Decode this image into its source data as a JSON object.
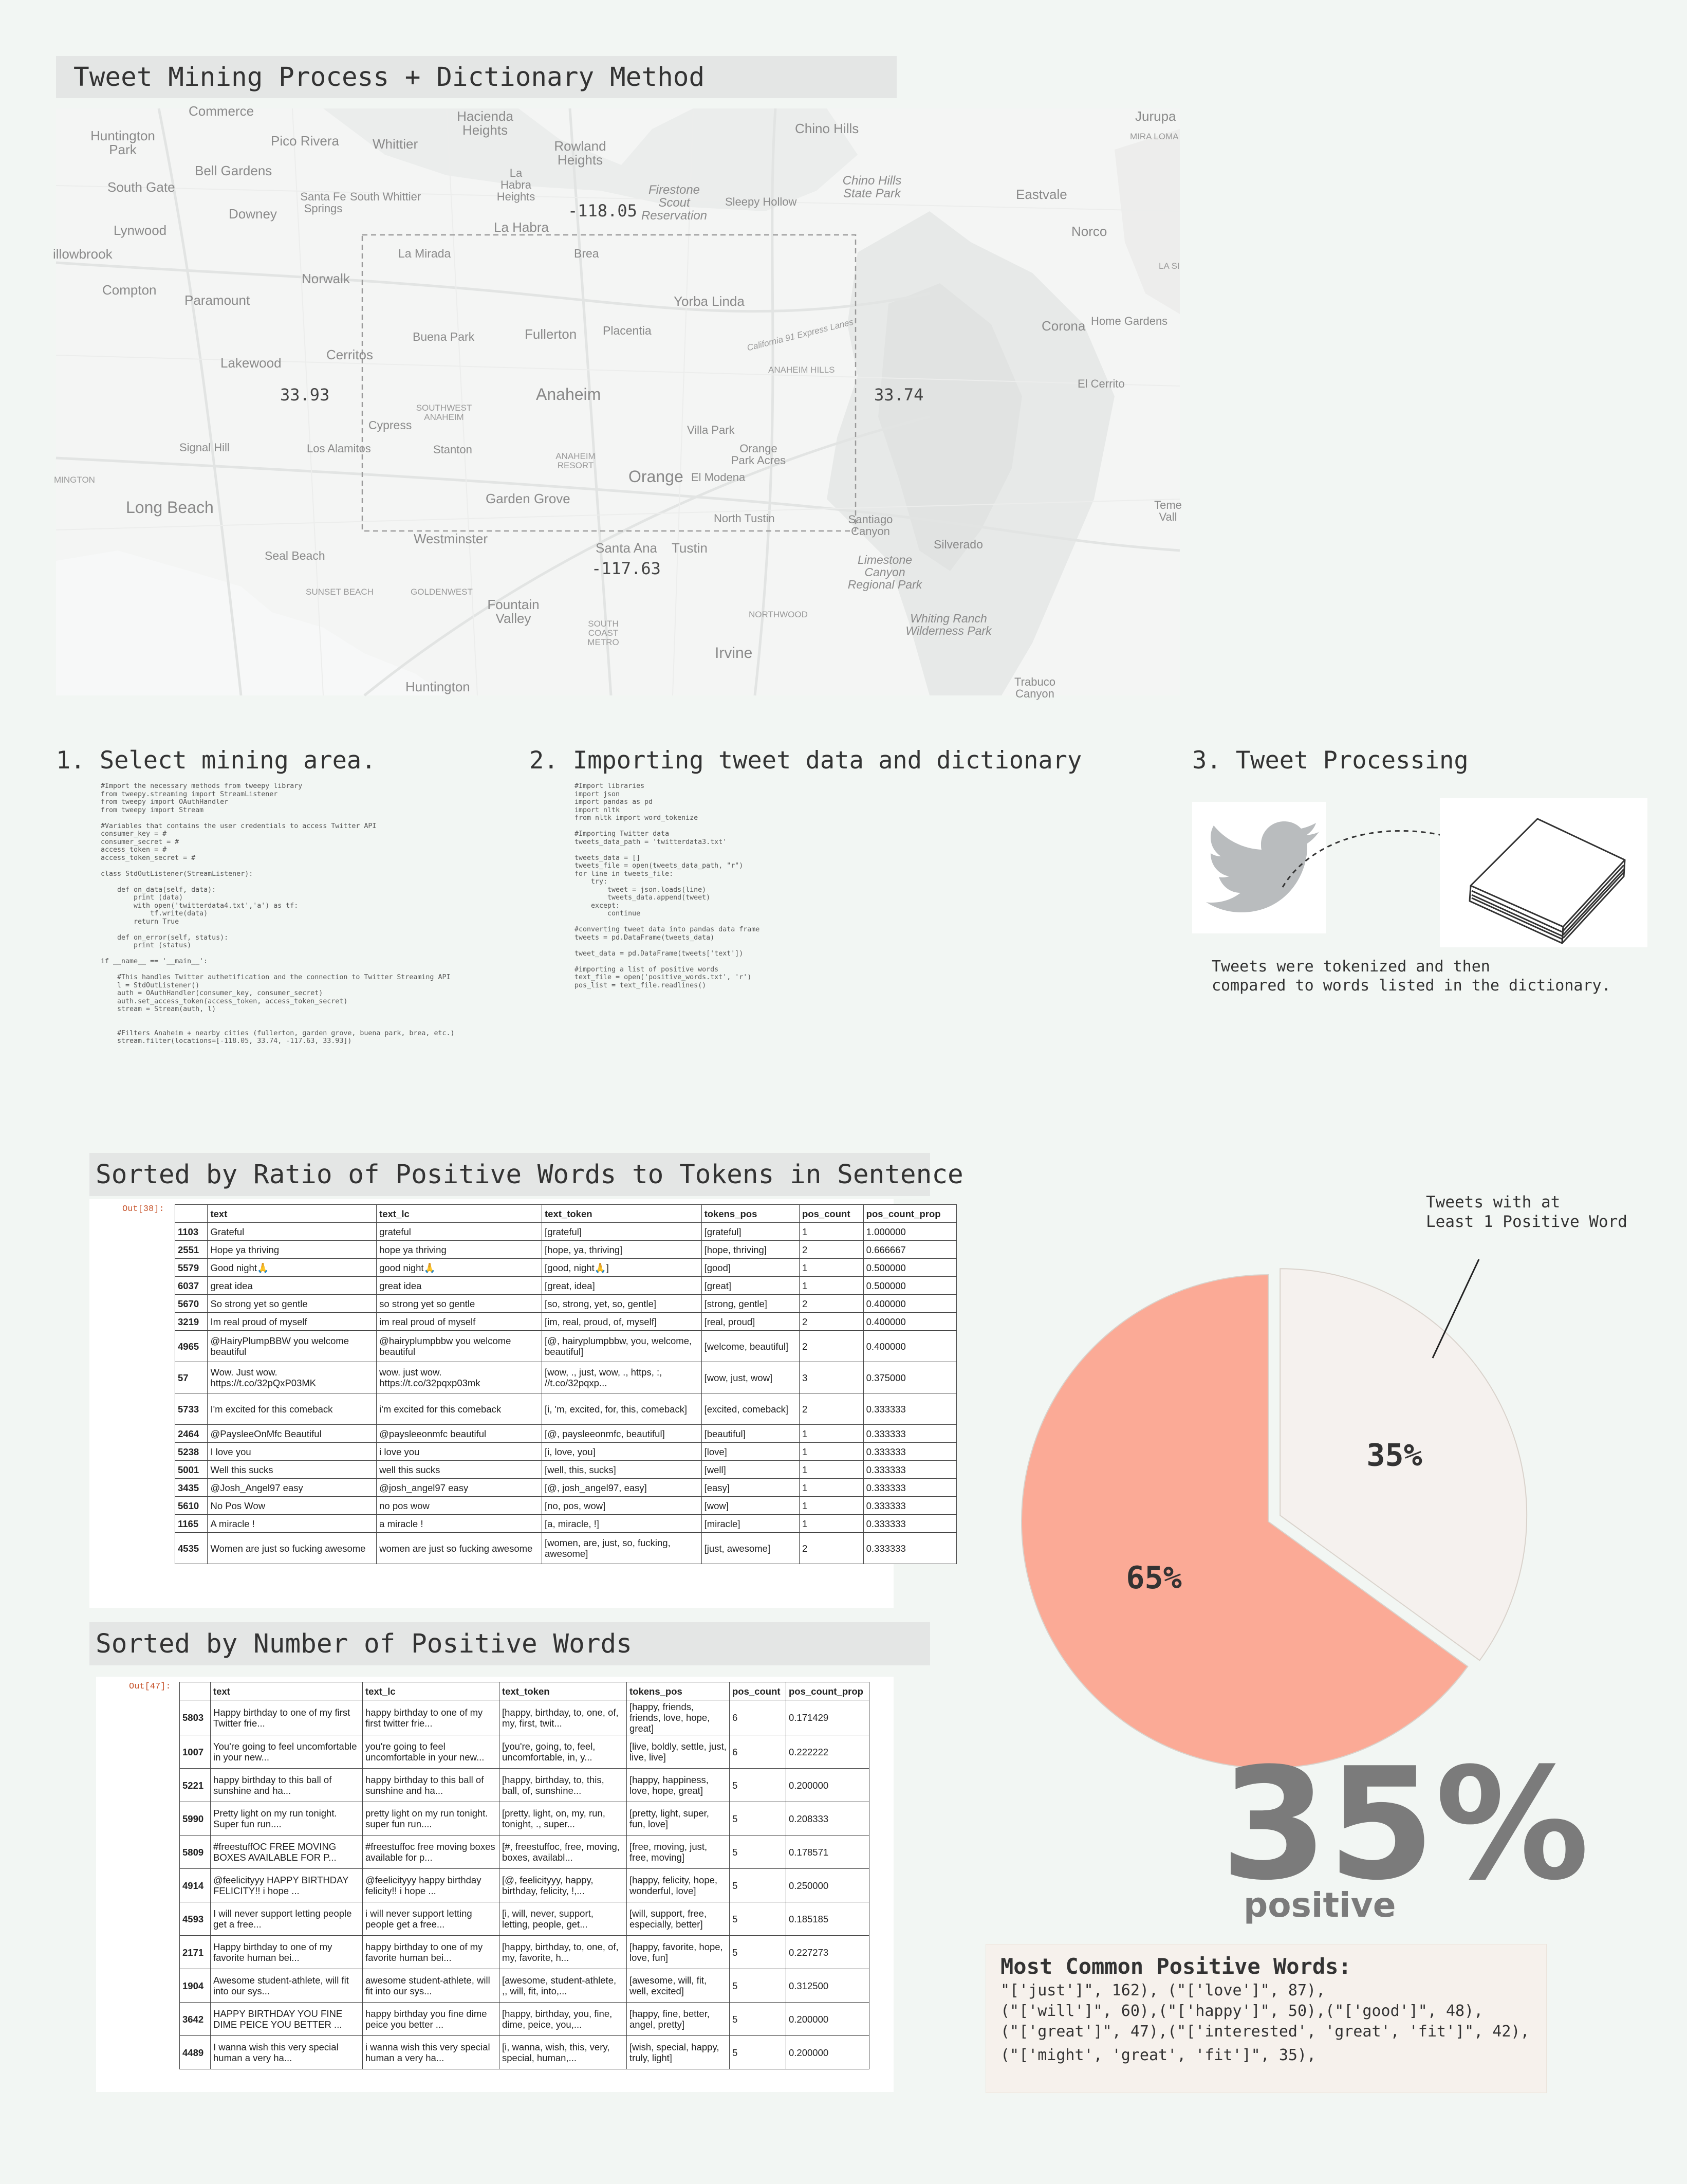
{
  "title": "Tweet Mining Process + Dictionary Method",
  "map": {
    "coords": {
      "top": "-118.05",
      "bottom": "-117.63",
      "left": "33.93",
      "right": "33.74"
    },
    "places": [
      "Commerce",
      "Hacienda Heights",
      "Chino Hills",
      "Jurupa",
      "MIRA LOMA",
      "Huntington Park",
      "Pico Rivera",
      "Whittier",
      "Rowland Heights",
      "Bell Gardens",
      "La Habra Heights",
      "Firestone Scout Reservation",
      "Chino Hills State Park",
      "South Gate",
      "Santa Fe Springs",
      "South Whittier",
      "Sleepy Hollow",
      "Eastvale",
      "Lynwood",
      "Downey",
      "La Habra",
      "Norco",
      "illowbrook",
      "La Mirada",
      "Brea",
      "LA SI",
      "Compton",
      "Norwalk",
      "Paramount",
      "Yorba Linda",
      "Buena Park",
      "Fullerton",
      "Placentia",
      "California 91 Express Lanes",
      "Corona",
      "Home Gardens",
      "ANAHEIM HILLS",
      "Lakewood",
      "Cerritos",
      "El Cerrito",
      "Anaheim",
      "SOUTHWEST ANAHEIM",
      "Cypress",
      "Villa Park",
      "Signal Hill",
      "Los Alamitos",
      "Stanton",
      "ANAHEIM RESORT",
      "Orange Park Acres",
      "MINGTON",
      "Orange",
      "El Modena",
      "Long Beach",
      "Garden Grove",
      "North Tustin",
      "Santiago Canyon",
      "Teme Vall",
      "Westminster",
      "Santa Ana",
      "Tustin",
      "Silverado",
      "Seal Beach",
      "Limestone Canyon Regional Park",
      "SUNSET BEACH",
      "GOLDENWEST",
      "Fountain Valley",
      "NORTHWOOD",
      "Whiting Ranch Wilderness Park",
      "SOUTH COAST METRO",
      "Irvine",
      "Trabuco Canyon",
      "Huntington"
    ]
  },
  "steps": {
    "s1": {
      "heading": "1. Select mining area."
    },
    "s2": {
      "heading": "2. Importing tweet data and dictionary"
    },
    "s3": {
      "heading": "3. Tweet Processing"
    }
  },
  "code1": [
    "#Import the necessary methods from tweepy library",
    "from tweepy.streaming import StreamListener",
    "from tweepy import OAuthHandler",
    "from tweepy import Stream",
    "",
    "#Variables that contains the user credentials to access Twitter API",
    "consumer_key = #",
    "consumer_secret = #",
    "access_token = #",
    "access_token_secret = #",
    "",
    "class StdOutListener(StreamListener):",
    "",
    "    def on_data(self, data):",
    "        print (data)",
    "        with open('twitterdata4.txt','a') as tf:",
    "            tf.write(data)",
    "        return True",
    "",
    "    def on_error(self, status):",
    "        print (status)",
    "",
    "if __name__ == '__main__':",
    "",
    "    #This handles Twitter authetification and the connection to Twitter Streaming API",
    "    l = StdOutListener()",
    "    auth = OAuthHandler(consumer_key, consumer_secret)",
    "    auth.set_access_token(access_token, access_token_secret)",
    "    stream = Stream(auth, l)",
    "",
    "",
    "    #Filters Anaheim + nearby cities (fullerton, garden grove, buena park, brea, etc.)",
    "    stream.filter(locations=[-118.05, 33.74, -117.63, 33.93])"
  ],
  "code2": [
    "#Import libraries",
    "import json",
    "import pandas as pd",
    "import nltk",
    "from nltk import word_tokenize",
    "",
    "#Importing Twitter data",
    "tweets_data_path = 'twitterdata3.txt'",
    "",
    "tweets_data = []",
    "tweets_file = open(tweets_data_path, \"r\")",
    "for line in tweets_file:",
    "    try:",
    "        tweet = json.loads(line)",
    "        tweets_data.append(tweet)",
    "    except:",
    "        continue",
    "",
    "#converting tweet data into pandas data frame",
    "tweets = pd.DataFrame(tweets_data)",
    "",
    "tweet_data = pd.DataFrame(tweets['text'])",
    "",
    "#importing a list of positive words",
    "text_file = open('positive_words.txt', 'r')",
    "pos_list = text_file.readlines()"
  ],
  "processing_caption": "Tweets were tokenized and then\ncompared to words listed in the dictionary.",
  "table1": {
    "banner": "Sorted by Ratio of Positive Words to Tokens in Sentence",
    "out_label": "Out[38]:",
    "columns": [
      "",
      "text",
      "text_lc",
      "text_token",
      "tokens_pos",
      "pos_count",
      "pos_count_prop"
    ],
    "rows": [
      [
        "1103",
        "Grateful",
        "grateful",
        "[grateful]",
        "[grateful]",
        "1",
        "1.000000"
      ],
      [
        "2551",
        "Hope ya thriving",
        "hope ya thriving",
        "[hope, ya, thriving]",
        "[hope, thriving]",
        "2",
        "0.666667"
      ],
      [
        "5579",
        "Good night🙏",
        "good night🙏",
        "[good, night🙏]",
        "[good]",
        "1",
        "0.500000"
      ],
      [
        "6037",
        "great idea",
        "great idea",
        "[great, idea]",
        "[great]",
        "1",
        "0.500000"
      ],
      [
        "5670",
        "So strong yet so gentle",
        "so strong yet so gentle",
        "[so, strong, yet, so, gentle]",
        "[strong, gentle]",
        "2",
        "0.400000"
      ],
      [
        "3219",
        "Im real proud of myself",
        "im real proud of myself",
        "[im, real, proud, of, myself]",
        "[real, proud]",
        "2",
        "0.400000"
      ],
      [
        "4965",
        "@HairyPlumpBBW you welcome beautiful",
        "@hairyplumpbbw you welcome beautiful",
        "[@, hairyplumpbbw, you, welcome, beautiful]",
        "[welcome, beautiful]",
        "2",
        "0.400000"
      ],
      [
        "57",
        "Wow. Just wow. https://t.co/32pQxP03MK",
        "wow. just wow. https://t.co/32pqxp03mk",
        "[wow, ., just, wow, ., https, :, //t.co/32pqxp...",
        "[wow, just, wow]",
        "3",
        "0.375000"
      ],
      [
        "5733",
        "I'm excited for this comeback",
        "i'm excited for this comeback",
        "[i, 'm, excited, for, this, comeback]",
        "[excited, comeback]",
        "2",
        "0.333333"
      ],
      [
        "2464",
        "@PaysleeOnMfc Beautiful",
        "@paysleeonmfc beautiful",
        "[@, paysleeonmfc, beautiful]",
        "[beautiful]",
        "1",
        "0.333333"
      ],
      [
        "5238",
        "I love you",
        "i love you",
        "[i, love, you]",
        "[love]",
        "1",
        "0.333333"
      ],
      [
        "5001",
        "Well this sucks",
        "well this sucks",
        "[well, this, sucks]",
        "[well]",
        "1",
        "0.333333"
      ],
      [
        "3435",
        "@Josh_Angel97 easy",
        "@josh_angel97 easy",
        "[@, josh_angel97, easy]",
        "[easy]",
        "1",
        "0.333333"
      ],
      [
        "5610",
        "No Pos Wow",
        "no pos wow",
        "[no, pos, wow]",
        "[wow]",
        "1",
        "0.333333"
      ],
      [
        "1165",
        "A miracle !",
        "a miracle !",
        "[a, miracle, !]",
        "[miracle]",
        "1",
        "0.333333"
      ],
      [
        "4535",
        "Women are just so fucking awesome",
        "women are just so fucking awesome",
        "[women, are, just, so, fucking, awesome]",
        "[just, awesome]",
        "2",
        "0.333333"
      ]
    ]
  },
  "table2": {
    "banner": "Sorted by Number of Positive Words",
    "out_label": "Out[47]:",
    "columns": [
      "",
      "text",
      "text_lc",
      "text_token",
      "tokens_pos",
      "pos_count",
      "pos_count_prop"
    ],
    "rows": [
      [
        "5803",
        "Happy birthday to one of my first Twitter frie...",
        "happy birthday to one of my first twitter frie...",
        "[happy, birthday, to, one, of, my, first, twit...",
        "[happy, friends, friends, love, hope, great]",
        "6",
        "0.171429"
      ],
      [
        "1007",
        "You're going to feel uncomfortable in your new...",
        "you're going to feel uncomfortable in your new...",
        "[you're, going, to, feel, uncomfortable, in, y...",
        "[live, boldly, settle, just, live, live]",
        "6",
        "0.222222"
      ],
      [
        "5221",
        "happy birthday to this ball of sunshine and ha...",
        "happy birthday to this ball of sunshine and ha...",
        "[happy, birthday, to, this, ball, of, sunshine...",
        "[happy, happiness, love, hope, great]",
        "5",
        "0.200000"
      ],
      [
        "5990",
        "Pretty light on my run tonight. Super fun run....",
        "pretty light on my run tonight. super fun run....",
        "[pretty, light, on, my, run, tonight, ., super...",
        "[pretty, light, super, fun, love]",
        "5",
        "0.208333"
      ],
      [
        "5809",
        "#freestuffOC FREE MOVING BOXES AVAILABLE FOR P...",
        "#freestuffoc free moving boxes available for p...",
        "[#, freestuffoc, free, moving, boxes, availabl...",
        "[free, moving, just, free, moving]",
        "5",
        "0.178571"
      ],
      [
        "4914",
        "@feelicityyy HAPPY BIRTHDAY FELICITY!! i hope ...",
        "@feelicityyy happy birthday felicity!! i hope ...",
        "[@, feelicityyy, happy, birthday, felicity, !,...",
        "[happy, felicity, hope, wonderful, love]",
        "5",
        "0.250000"
      ],
      [
        "4593",
        "I will never support letting people get a free...",
        "i will never support letting people get a free...",
        "[i, will, never, support, letting, people, get...",
        "[will, support, free, especially, better]",
        "5",
        "0.185185"
      ],
      [
        "2171",
        "Happy birthday to one of my favorite human bei...",
        "happy birthday to one of my favorite human bei...",
        "[happy, birthday, to, one, of, my, favorite, h...",
        "[happy, favorite, hope, love, fun]",
        "5",
        "0.227273"
      ],
      [
        "1904",
        "Awesome student-athlete, will fit into our sys...",
        "awesome student-athlete, will fit into our sys...",
        "[awesome, student-athlete, ,, will, fit, into,...",
        "[awesome, will, fit, well, excited]",
        "5",
        "0.312500"
      ],
      [
        "3642",
        "HAPPY BIRTHDAY YOU FINE DIME PEICE YOU BETTER ...",
        "happy birthday you fine dime peice you better ...",
        "[happy, birthday, you, fine, dime, peice, you,...",
        "[happy, fine, better, angel, pretty]",
        "5",
        "0.200000"
      ],
      [
        "4489",
        "I wanna wish this very special human a very ha...",
        "i wanna wish this very special human a very ha...",
        "[i, wanna, wish, this, very, special, human,...",
        "[wish, special, happy, truly, light]",
        "5",
        "0.200000"
      ]
    ]
  },
  "chart_data": {
    "type": "pie",
    "slices": [
      {
        "label": "35%",
        "value": 35,
        "color": "#f5f1ee",
        "annotation": "Tweets with at\nLeast 1 Positive Word"
      },
      {
        "label": "65%",
        "value": 65,
        "color": "#fbaa96"
      }
    ]
  },
  "summary": {
    "big": "35%",
    "sub": "positive"
  },
  "common_words": {
    "title": "Most Common Positive Words:",
    "lines": [
      "\"['just']\", 162), (\"['love']\", 87),",
      "(\"['will']\", 60),(\"['happy']\", 50),(\"['good']\", 48),",
      "(\"['great']\", 47),(\"['interested', 'great', 'fit']\", 42),",
      "(\"['might', 'great', 'fit']\", 35),"
    ]
  },
  "colors": {
    "background": "#f2f6f3",
    "banner": "#e4e6e5",
    "pie_major": "#fbaa96",
    "pie_minor": "#f5f1ee",
    "twitter_bird": "#b9bcbe"
  }
}
